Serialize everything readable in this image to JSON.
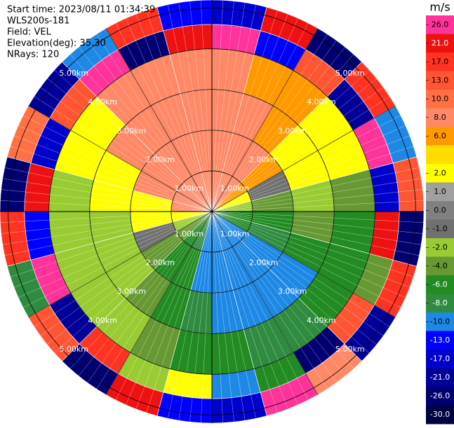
{
  "chart_data": {
    "type": "ppi",
    "header": [
      "Start time: 2023/08/11 01:34:39",
      "WLS200s-181",
      "Field: VEL",
      "Elevation(deg): 35.30",
      "NRays: 120"
    ],
    "rlim": [
      0,
      5.2
    ],
    "range_bins": [
      0,
      1,
      2,
      3,
      4,
      4.6,
      5.2
    ],
    "range_rings": {
      "values": [
        1,
        2,
        3,
        4,
        5
      ],
      "labels": [
        "1.00km",
        "2.00km",
        "3.00km",
        "4.00km",
        "5.00km"
      ]
    },
    "values": [
      [
        8,
        8,
        8,
        8,
        26,
        -17
      ],
      [
        8,
        8,
        8,
        6,
        -13,
        21
      ],
      [
        8,
        8,
        6,
        6,
        13,
        -26
      ],
      [
        6,
        6,
        2,
        2,
        -21,
        17
      ],
      [
        2,
        -1,
        2,
        2,
        26,
        -10
      ],
      [
        -2,
        -4,
        -2,
        -4,
        -17,
        13
      ],
      [
        -6,
        -6,
        -4,
        -6,
        21,
        -26
      ],
      [
        -6,
        -8,
        -6,
        -6,
        -4,
        17
      ],
      [
        -10,
        -10,
        -10,
        -6,
        13,
        -21
      ],
      [
        -10,
        -10,
        -10,
        -8,
        -26,
        8
      ],
      [
        -10,
        -10,
        -10,
        -8,
        -6,
        26
      ],
      [
        -10,
        -10,
        -10,
        -6,
        -10,
        -17
      ],
      [
        -10,
        -10,
        -8,
        -6,
        2,
        -13
      ],
      [
        -8,
        -6,
        -6,
        -4,
        -2,
        21
      ],
      [
        -6,
        -6,
        -4,
        -2,
        17,
        -26
      ],
      [
        -4,
        -4,
        -2,
        -2,
        -21,
        13
      ],
      [
        -2,
        -1,
        -2,
        -2,
        26,
        -8
      ],
      [
        2,
        2,
        -2,
        -2,
        -13,
        17
      ],
      [
        8,
        2,
        2,
        -2,
        21,
        -26
      ],
      [
        8,
        8,
        2,
        2,
        -17,
        10
      ],
      [
        8,
        8,
        8,
        2,
        13,
        -21
      ],
      [
        8,
        8,
        8,
        8,
        26,
        -10
      ],
      [
        8,
        8,
        8,
        8,
        -26,
        17
      ],
      [
        8,
        8,
        8,
        8,
        21,
        -13
      ]
    ],
    "colorbar": {
      "title": "m/s",
      "ticks": [
        {
          "value": 26,
          "label": "26.0"
        },
        {
          "value": 21,
          "label": "21.0"
        },
        {
          "value": 17,
          "label": "17.0"
        },
        {
          "value": 13,
          "label": "13.0"
        },
        {
          "value": 10,
          "label": "10.0"
        },
        {
          "value": 8,
          "label": "8.0"
        },
        {
          "value": 6,
          "label": "6.0"
        },
        null,
        {
          "value": 2,
          "label": "2.0"
        },
        {
          "value": 1,
          "label": "1.0"
        },
        {
          "value": 0,
          "label": "0.0"
        },
        {
          "value": -1,
          "label": "-1.0"
        },
        {
          "value": -2,
          "label": "-2.0"
        },
        {
          "value": -4,
          "label": "-4.0"
        },
        {
          "value": -6,
          "label": "-6.0"
        },
        {
          "value": -8,
          "label": "-8.0"
        },
        {
          "value": -10,
          "label": "-10.0"
        },
        {
          "value": -13,
          "label": "-13.0"
        },
        {
          "value": -17,
          "label": "-17.0"
        },
        {
          "value": -21,
          "label": "-21.0"
        },
        {
          "value": -26,
          "label": "-26.0"
        },
        {
          "value": -30,
          "label": "-30.0"
        }
      ],
      "colors": [
        "#ff3399",
        "#ee1111",
        "#ff3322",
        "#ff5533",
        "#ff7044",
        "#ff8866",
        "#ff9900",
        "#ffdd00",
        "#ffff00",
        "#a0a0a0",
        "#808080",
        "#707070",
        "#99cc33",
        "#669933",
        "#228b22",
        "#2e8b40",
        "#1e88e5",
        "#0000ff",
        "#0000cc",
        "#000099",
        "#000070",
        "#000044"
      ]
    }
  }
}
